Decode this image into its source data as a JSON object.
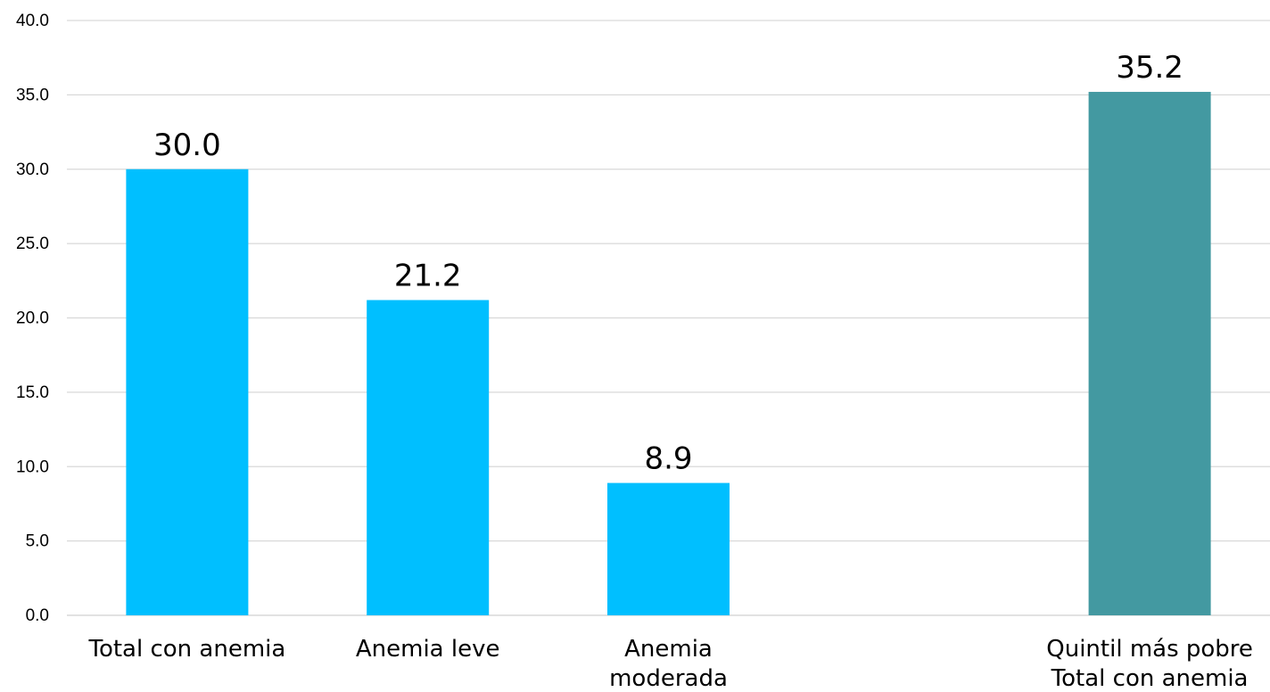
{
  "chart_data": {
    "type": "bar",
    "categories": [
      [
        "Total con anemia"
      ],
      [
        "Anemia leve"
      ],
      [
        "Anemia",
        "moderada"
      ],
      [],
      [
        "Quintil más pobre",
        "Total con anemia"
      ]
    ],
    "values": [
      30.0,
      21.2,
      8.9,
      null,
      35.2
    ],
    "data_labels": [
      "30.0",
      "21.2",
      "8.9",
      "",
      "35.2"
    ],
    "bar_colors": [
      "#00BFFF",
      "#00BFFF",
      "#00BFFF",
      "",
      "#4399A1"
    ],
    "ylim": [
      0,
      40
    ],
    "yticks": [
      "0.0",
      "5.0",
      "10.0",
      "15.0",
      "20.0",
      "25.0",
      "30.0",
      "35.0",
      "40.0"
    ],
    "title": "",
    "xlabel": "",
    "ylabel": "",
    "grid": true,
    "legend": "none"
  }
}
